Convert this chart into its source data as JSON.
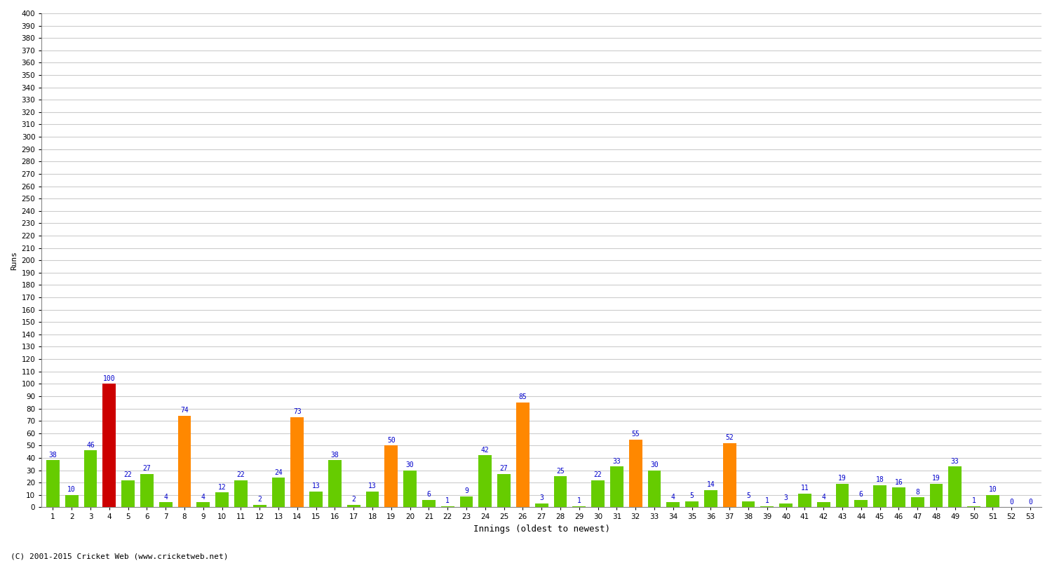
{
  "innings_labels": [
    "1",
    "2",
    "3",
    "4",
    "5",
    "6",
    "7",
    "8",
    "9",
    "10",
    "11",
    "12",
    "13",
    "14",
    "15",
    "16",
    "17",
    "18",
    "19",
    "20",
    "21",
    "22",
    "23",
    "24",
    "25",
    "26",
    "27",
    "28",
    "29",
    "30",
    "31",
    "32",
    "33",
    "34",
    "35",
    "36",
    "37",
    "38",
    "39",
    "40",
    "41",
    "42",
    "43",
    "44",
    "45",
    "46",
    "47",
    "48",
    "49",
    "50",
    "51",
    "52",
    "53"
  ],
  "runs": [
    38,
    10,
    46,
    100,
    22,
    27,
    4,
    74,
    4,
    12,
    22,
    2,
    24,
    73,
    13,
    38,
    2,
    13,
    50,
    30,
    6,
    1,
    9,
    42,
    27,
    85,
    3,
    25,
    1,
    22,
    33,
    55,
    30,
    4,
    5,
    14,
    52,
    5,
    1,
    3,
    11,
    4,
    19,
    6,
    18,
    16,
    8,
    19,
    33,
    1,
    10,
    0,
    0
  ],
  "bar_colors": [
    "#66cc00",
    "#66cc00",
    "#66cc00",
    "#cc0000",
    "#66cc00",
    "#66cc00",
    "#66cc00",
    "#ff8800",
    "#66cc00",
    "#66cc00",
    "#66cc00",
    "#66cc00",
    "#66cc00",
    "#ff8800",
    "#66cc00",
    "#66cc00",
    "#66cc00",
    "#66cc00",
    "#ff8800",
    "#66cc00",
    "#66cc00",
    "#66cc00",
    "#66cc00",
    "#66cc00",
    "#66cc00",
    "#ff8800",
    "#66cc00",
    "#66cc00",
    "#66cc00",
    "#66cc00",
    "#66cc00",
    "#ff8800",
    "#66cc00",
    "#66cc00",
    "#66cc00",
    "#66cc00",
    "#ff8800",
    "#66cc00",
    "#66cc00",
    "#66cc00",
    "#66cc00",
    "#66cc00",
    "#66cc00",
    "#66cc00",
    "#66cc00",
    "#66cc00",
    "#66cc00",
    "#66cc00",
    "#66cc00",
    "#66cc00",
    "#66cc00",
    "#66cc00",
    "#66cc00"
  ],
  "ylabel": "Runs",
  "xlabel": "Innings (oldest to newest)",
  "footer": "(C) 2001-2015 Cricket Web (www.cricketweb.net)",
  "ylim": [
    0,
    400
  ],
  "background_color": "#ffffff",
  "plot_bg_color": "#ffffff",
  "grid_color": "#cccccc",
  "bar_label_color": "#0000cc",
  "bar_label_fontsize": 7,
  "axis_label_fontsize": 9,
  "tick_fontsize": 7.5,
  "ylabel_fontsize": 8
}
